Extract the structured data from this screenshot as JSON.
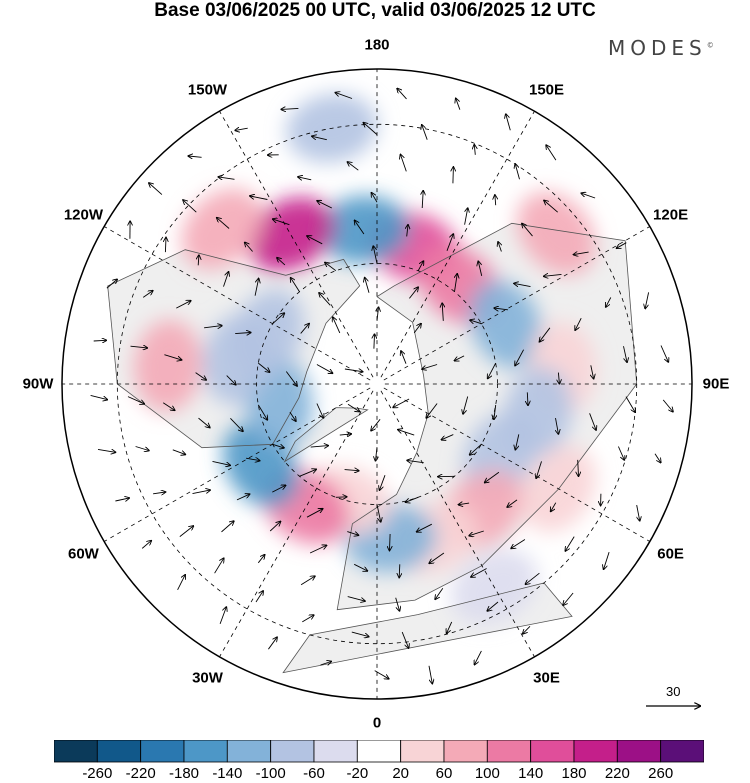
{
  "title": "Base 03/06/2025 00 UTC, valid 03/06/2025 12 UTC",
  "brand": "MODES",
  "brand_mark": "©",
  "longitudes": [
    "180",
    "150E",
    "120E",
    "90E",
    "60E",
    "30E",
    "0",
    "30W",
    "60W",
    "90W",
    "120W",
    "150W"
  ],
  "reference_vector": {
    "value": "30",
    "icon": "arrow-right-icon"
  },
  "colorbar": {
    "ticks": [
      "-260",
      "-220",
      "-180",
      "-140",
      "-100",
      "-60",
      "-20",
      "20",
      "60",
      "100",
      "140",
      "180",
      "220",
      "260"
    ],
    "colors": [
      "#0b3a5a",
      "#11588a",
      "#2a78b0",
      "#4d97c7",
      "#83b2d9",
      "#b3c3e2",
      "#dcdcee",
      "#ffffff",
      "#f8d4d6",
      "#f4aab7",
      "#ec7aa4",
      "#e04e9a",
      "#c41f8a",
      "#9c1086",
      "#5b0f78"
    ]
  },
  "colors": {
    "land": "#efefef",
    "ocean": "#ffffff",
    "coast": "#555555"
  },
  "anomaly_cells": [
    {
      "lon": 165,
      "lat": 55,
      "value": 160
    },
    {
      "lon": 140,
      "lat": 58,
      "value": 120
    },
    {
      "lon": -175,
      "lat": 52,
      "value": -150
    },
    {
      "lon": -150,
      "lat": 48,
      "value": 200
    },
    {
      "lon": -135,
      "lat": 38,
      "value": 90
    },
    {
      "lon": 115,
      "lat": 55,
      "value": -130
    },
    {
      "lon": 95,
      "lat": 45,
      "value": 60
    },
    {
      "lon": 80,
      "lat": 50,
      "value": -60
    },
    {
      "lon": 60,
      "lat": 55,
      "value": -90
    },
    {
      "lon": 40,
      "lat": 50,
      "value": 80
    },
    {
      "lon": 20,
      "lat": 50,
      "value": 60
    },
    {
      "lon": 5,
      "lat": 52,
      "value": -120
    },
    {
      "lon": -15,
      "lat": 60,
      "value": 40
    },
    {
      "lon": -30,
      "lat": 55,
      "value": 130
    },
    {
      "lon": -55,
      "lat": 55,
      "value": -150
    },
    {
      "lon": -80,
      "lat": 65,
      "value": -130
    },
    {
      "lon": -100,
      "lat": 55,
      "value": -90
    },
    {
      "lon": -95,
      "lat": 40,
      "value": 70
    },
    {
      "lon": -115,
      "lat": 60,
      "value": -70
    },
    {
      "lon": 130,
      "lat": 35,
      "value": 70
    },
    {
      "lon": 60,
      "lat": 40,
      "value": 60
    },
    {
      "lon": -170,
      "lat": 30,
      "value": -60
    },
    {
      "lon": 30,
      "lat": 35,
      "value": -50
    }
  ]
}
